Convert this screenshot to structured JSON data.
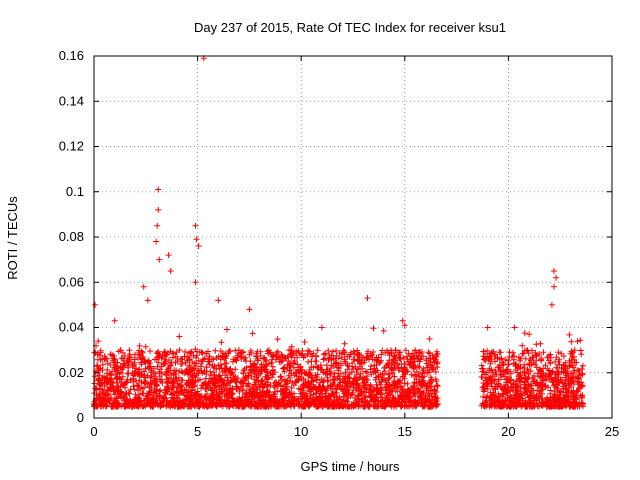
{
  "chart_data": {
    "type": "scatter",
    "title": "Day 237 of 2015, Rate Of TEC Index for receiver ksu1",
    "xlabel": "GPS time / hours",
    "ylabel": "ROTI / TECUs",
    "xlim": [
      0,
      25
    ],
    "ylim": [
      0,
      0.16
    ],
    "x_ticks": [
      "0",
      "5",
      "10",
      "15",
      "20",
      "25"
    ],
    "y_ticks": [
      "0",
      "0.02",
      "0.04",
      "0.06",
      "0.08",
      "0.1",
      "0.12",
      "0.14",
      "0.16"
    ],
    "grid": true,
    "marker": "+",
    "series": [
      {
        "name": "ksu1",
        "color": "#ff0000",
        "data_segments": [
          {
            "x_range": [
              0.0,
              16.6
            ],
            "typical": [
              0.005,
              0.03
            ]
          },
          {
            "x_range": [
              18.7,
              23.6
            ],
            "typical": [
              0.005,
              0.03
            ]
          }
        ],
        "highlights": [
          {
            "x": 0.05,
            "y": 0.05
          },
          {
            "x": 0.2,
            "y": 0.034
          },
          {
            "x": 1.0,
            "y": 0.043
          },
          {
            "x": 2.4,
            "y": 0.058
          },
          {
            "x": 2.6,
            "y": 0.052
          },
          {
            "x": 3.1,
            "y": 0.101
          },
          {
            "x": 3.1,
            "y": 0.092
          },
          {
            "x": 3.05,
            "y": 0.085
          },
          {
            "x": 3.0,
            "y": 0.078
          },
          {
            "x": 3.15,
            "y": 0.07
          },
          {
            "x": 3.6,
            "y": 0.072
          },
          {
            "x": 3.7,
            "y": 0.065
          },
          {
            "x": 4.9,
            "y": 0.085
          },
          {
            "x": 4.95,
            "y": 0.079
          },
          {
            "x": 5.05,
            "y": 0.076
          },
          {
            "x": 5.3,
            "y": 0.159
          },
          {
            "x": 4.9,
            "y": 0.06
          },
          {
            "x": 6.0,
            "y": 0.052
          },
          {
            "x": 7.5,
            "y": 0.048
          },
          {
            "x": 11.0,
            "y": 0.04
          },
          {
            "x": 13.2,
            "y": 0.053
          },
          {
            "x": 14.9,
            "y": 0.043
          },
          {
            "x": 15.0,
            "y": 0.041
          },
          {
            "x": 16.2,
            "y": 0.035
          },
          {
            "x": 19.0,
            "y": 0.04
          },
          {
            "x": 20.3,
            "y": 0.04
          },
          {
            "x": 21.0,
            "y": 0.037
          },
          {
            "x": 22.2,
            "y": 0.065
          },
          {
            "x": 22.3,
            "y": 0.062
          },
          {
            "x": 22.2,
            "y": 0.058
          },
          {
            "x": 22.1,
            "y": 0.05
          },
          {
            "x": 23.2,
            "y": 0.03
          }
        ]
      }
    ]
  }
}
